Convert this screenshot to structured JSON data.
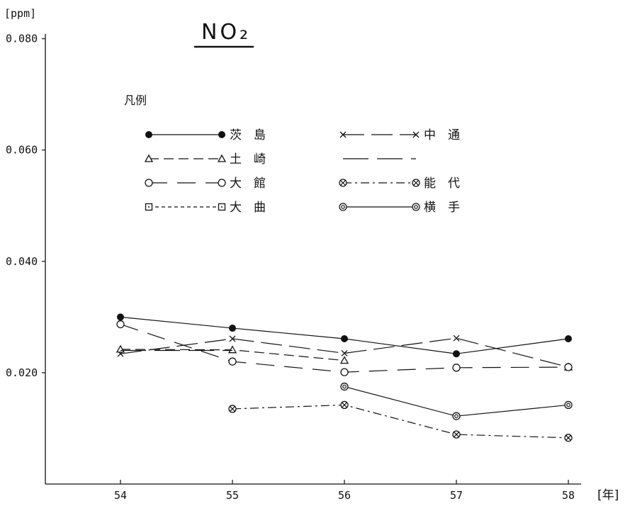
{
  "chart_data": {
    "type": "line",
    "title": "NO₂",
    "y_unit": "[ppm]",
    "x_unit": "[年]",
    "legend_title": "凡例",
    "legend_placement": "top-left",
    "grid": false,
    "x": [
      54,
      55,
      56,
      57,
      58
    ],
    "x_tick_labels": [
      "54",
      "55",
      "56",
      "57",
      "58"
    ],
    "ylim": [
      0,
      0.08
    ],
    "y_ticks": [
      0.02,
      0.04,
      0.06,
      0.08
    ],
    "y_tick_labels": [
      "0.020",
      "0.040",
      "0.060",
      "0.080"
    ],
    "series": [
      {
        "name": "茨　島",
        "marker": "filled-circle",
        "dash": "solid",
        "values": [
          0.03,
          0.028,
          0.0261,
          0.0234,
          0.0261
        ]
      },
      {
        "name": "中　通",
        "marker": "x",
        "dash": "long-dash",
        "values": [
          0.0234,
          0.0261,
          0.0235,
          0.0262,
          0.021
        ]
      },
      {
        "name": "土　崎",
        "marker": "triangle",
        "dash": "dash",
        "values": [
          0.0242,
          0.0241,
          0.0222,
          null,
          0.021
        ]
      },
      {
        "name": "",
        "marker": "none",
        "dash": "long-dash-2",
        "values": [
          0.024,
          0.024,
          null,
          null,
          null
        ]
      },
      {
        "name": "大　館",
        "marker": "open-circle",
        "dash": "long-dash-gap",
        "values": [
          0.0287,
          0.022,
          0.0201,
          0.0209,
          0.021
        ]
      },
      {
        "name": "能　代",
        "marker": "circle-x",
        "dash": "dash-dot",
        "values": [
          null,
          0.0135,
          0.0142,
          0.0089,
          0.0083
        ]
      },
      {
        "name": "大　曲",
        "marker": "open-square",
        "dash": "short-dash",
        "values": [
          null,
          null,
          null,
          null,
          null
        ]
      },
      {
        "name": "横　手",
        "marker": "double-circle",
        "dash": "solid",
        "values": [
          null,
          null,
          0.0175,
          0.0122,
          0.0142
        ]
      }
    ]
  }
}
